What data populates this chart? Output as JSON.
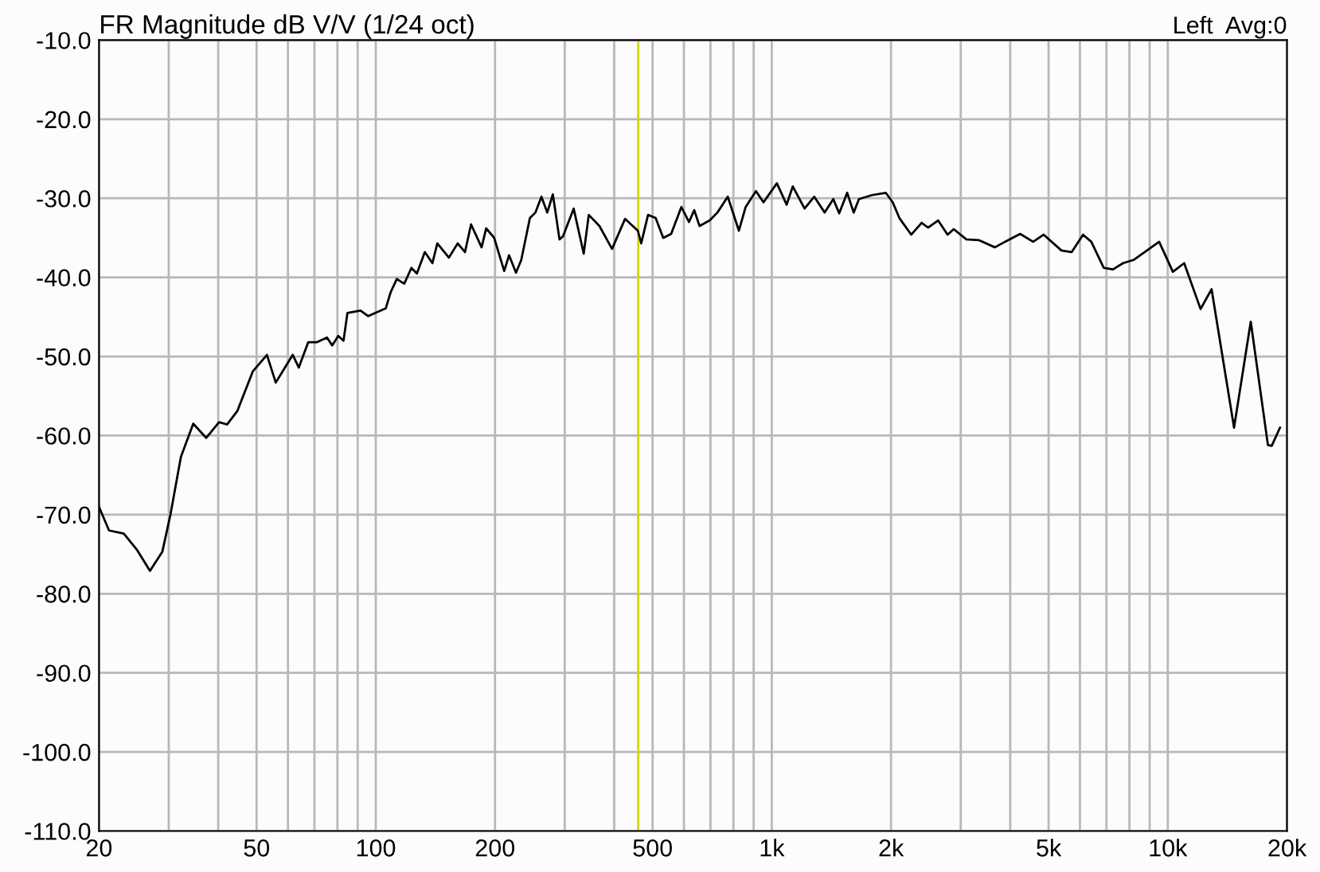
{
  "chart_data": {
    "type": "line",
    "title": "FR Magnitude dB V/V (1/24 oct)",
    "annotations": [
      "Left  Avg:0"
    ],
    "log": "x",
    "grid": true,
    "marker": "none",
    "line_style": "solid",
    "xlim": [
      20,
      20000
    ],
    "ylim": [
      -110,
      -10
    ],
    "xticks": [
      20,
      {
        "value": 30,
        "label": null
      },
      {
        "value": 40,
        "label": null
      },
      50,
      {
        "value": 60,
        "label": null
      },
      {
        "value": 70,
        "label": null
      },
      {
        "value": 80,
        "label": null
      },
      {
        "value": 90,
        "label": null
      },
      100,
      200,
      {
        "value": 300,
        "label": null
      },
      {
        "value": 400,
        "label": null
      },
      500,
      {
        "value": 600,
        "label": null
      },
      {
        "value": 700,
        "label": null
      },
      {
        "value": 800,
        "label": null
      },
      {
        "value": 900,
        "label": null
      },
      {
        "value": 1000,
        "label": "1k"
      },
      {
        "value": 2000,
        "label": "2k"
      },
      {
        "value": 3000,
        "label": null
      },
      {
        "value": 4000,
        "label": null
      },
      {
        "value": 5000,
        "label": "5k"
      },
      {
        "value": 6000,
        "label": null
      },
      {
        "value": 7000,
        "label": null
      },
      {
        "value": 8000,
        "label": null
      },
      {
        "value": 9000,
        "label": null
      },
      {
        "value": 10000,
        "label": "10k"
      },
      {
        "value": 20000,
        "label": "20k"
      }
    ],
    "yticks": [
      {
        "value": -10,
        "label": "-10.0"
      },
      {
        "value": -20,
        "label": "-20.0"
      },
      {
        "value": -30,
        "label": "-30.0"
      },
      {
        "value": -40,
        "label": "-40.0"
      },
      {
        "value": -50,
        "label": "-50.0"
      },
      {
        "value": -60,
        "label": "-60.0"
      },
      {
        "value": -70,
        "label": "-70.0"
      },
      {
        "value": -80,
        "label": "-80.0"
      },
      {
        "value": -90,
        "label": "-90.0"
      },
      {
        "value": -100,
        "label": "-100.0"
      },
      {
        "value": -110,
        "label": "-110.0"
      }
    ],
    "ref_lines": [
      {
        "axis": "x",
        "value": 460,
        "color": "#d4d400"
      }
    ],
    "series": [
      {
        "color": "#000000",
        "x": [
          20.0,
          21.2,
          23.1,
          24.9,
          26.9,
          28.9,
          30.3,
          32.2,
          34.6,
          37.3,
          40.2,
          42.1,
          44.7,
          48.9,
          53.1,
          55.9,
          59.3,
          61.7,
          63.9,
          67.5,
          70.9,
          75.3,
          77.6,
          80.4,
          82.9,
          84.8,
          91.5,
          95.7,
          106,
          109,
          113,
          118,
          123,
          127,
          133,
          139,
          143,
          153,
          161,
          168,
          174,
          185,
          190,
          199,
          211,
          217,
          226,
          233,
          245,
          253,
          262,
          271,
          280,
          291,
          297,
          316,
          335,
          345,
          367,
          395,
          426,
          459,
          468,
          487,
          509,
          532,
          557,
          591,
          618,
          637,
          657,
          697,
          729,
          774,
          826,
          859,
          912,
          953,
          1030,
          1090,
          1130,
          1210,
          1280,
          1360,
          1430,
          1480,
          1550,
          1610,
          1660,
          1790,
          1940,
          2020,
          2100,
          2250,
          2390,
          2480,
          2630,
          2780,
          2880,
          3100,
          3340,
          3660,
          3880,
          4240,
          4570,
          4860,
          5390,
          5720,
          6110,
          6410,
          6890,
          7270,
          7710,
          8190,
          9510,
          10300,
          11000,
          12100,
          12900,
          14700,
          16200,
          17900,
          18300,
          19200
        ],
        "values": [
          -69.0,
          -72.0,
          -72.4,
          -74.4,
          -77.1,
          -74.7,
          -70.0,
          -62.7,
          -58.5,
          -60.3,
          -58.3,
          -58.6,
          -56.9,
          -51.9,
          -49.8,
          -53.3,
          -51.2,
          -49.8,
          -51.4,
          -48.2,
          -48.2,
          -47.6,
          -48.6,
          -47.4,
          -48.0,
          -44.5,
          -44.2,
          -44.9,
          -43.9,
          -41.9,
          -40.2,
          -40.8,
          -38.8,
          -39.5,
          -36.8,
          -38.2,
          -35.7,
          -37.5,
          -35.7,
          -36.8,
          -33.3,
          -36.2,
          -33.8,
          -35.0,
          -39.2,
          -37.2,
          -39.4,
          -37.8,
          -32.5,
          -31.8,
          -29.8,
          -31.8,
          -29.5,
          -35.2,
          -34.8,
          -31.3,
          -37.0,
          -32.1,
          -33.5,
          -36.4,
          -32.6,
          -34.1,
          -35.7,
          -32.1,
          -32.5,
          -35.0,
          -34.5,
          -31.1,
          -33.0,
          -31.5,
          -33.5,
          -32.8,
          -31.8,
          -29.8,
          -34.1,
          -31.1,
          -29.1,
          -30.5,
          -28.1,
          -30.8,
          -28.5,
          -31.3,
          -29.8,
          -31.8,
          -30.1,
          -31.9,
          -29.3,
          -31.8,
          -30.1,
          -29.6,
          -29.3,
          -30.5,
          -32.5,
          -34.6,
          -33.1,
          -33.7,
          -32.8,
          -34.6,
          -33.9,
          -35.2,
          -35.3,
          -36.2,
          -35.5,
          -34.5,
          -35.5,
          -34.6,
          -36.6,
          -36.8,
          -34.6,
          -35.5,
          -38.8,
          -39.0,
          -38.2,
          -37.8,
          -35.5,
          -39.3,
          -38.2,
          -44.0,
          -41.5,
          -59.0,
          -45.6,
          -61.2,
          -61.3,
          -59.0
        ]
      }
    ]
  }
}
